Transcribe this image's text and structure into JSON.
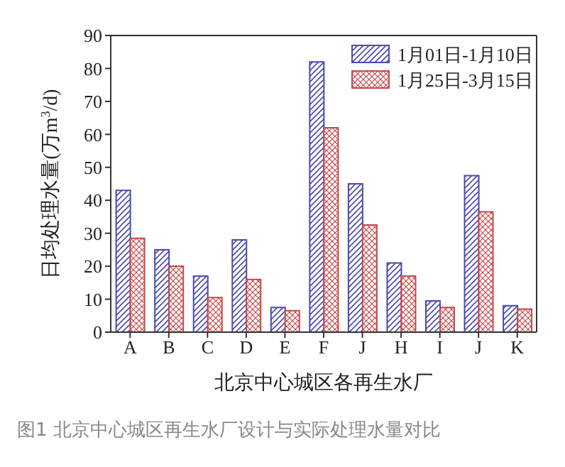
{
  "chart_data": {
    "type": "bar",
    "xlabel": "北京中心城区各再生水厂",
    "ylabel": "日均处理水量(万m$^{3}$/d)",
    "categories": [
      "A",
      "B",
      "C",
      "D",
      "E",
      "F",
      "J",
      "H",
      "I",
      "J",
      "K"
    ],
    "series": [
      {
        "name": "1月01日-1月10日",
        "color": "#4a4ab0",
        "values": [
          43,
          25,
          17,
          28,
          7.5,
          82,
          45,
          21,
          9.5,
          47.5,
          8
        ]
      },
      {
        "name": "1月25日-3月15日",
        "color": "#c84848",
        "values": [
          28.5,
          20,
          10.5,
          16,
          6.5,
          62,
          32.5,
          17,
          7.5,
          36.5,
          7
        ]
      }
    ],
    "ylim": [
      0,
      90
    ],
    "yticks": [
      0,
      10,
      20,
      30,
      40,
      50,
      60,
      70,
      80,
      90
    ],
    "legend": "top right",
    "annotations": [
      "图1 北京中心城区再生水厂设计与实际处理水量对比"
    ]
  }
}
